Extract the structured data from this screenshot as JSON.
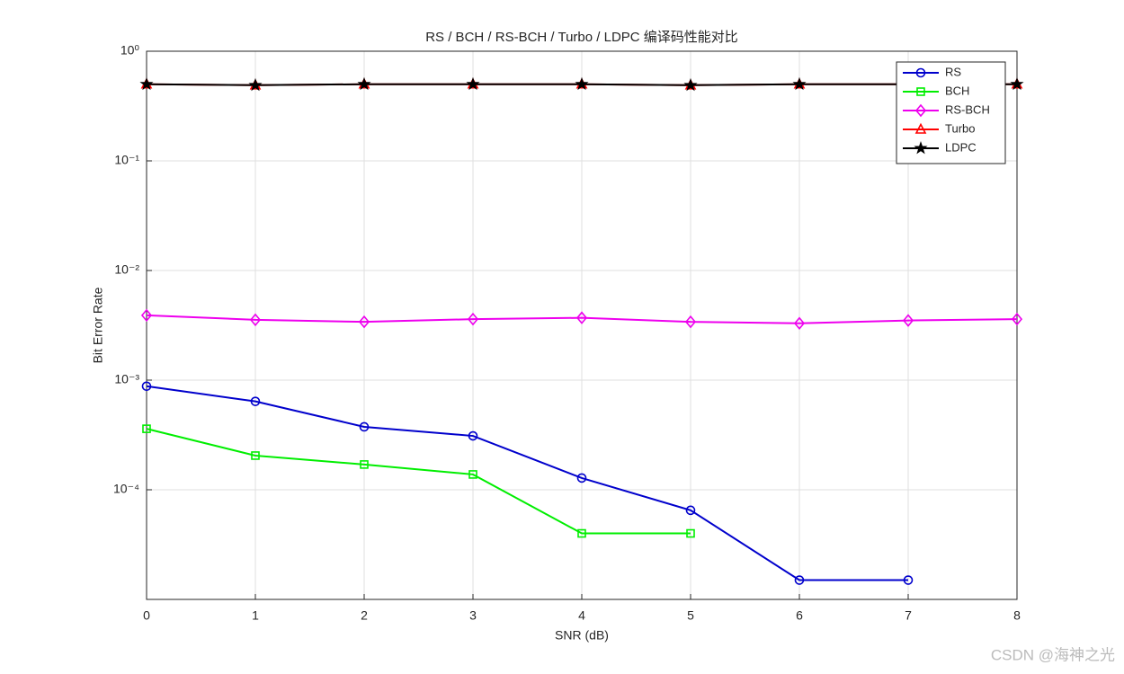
{
  "chart_data": {
    "type": "line",
    "title": "RS / BCH / RS-BCH / Turbo / LDPC 编译码性能对比",
    "x_label": "SNR (dB)",
    "y_label": "Bit Error Rate",
    "x": [
      0,
      1,
      2,
      3,
      4,
      5,
      6,
      7,
      8
    ],
    "xlim": [
      0,
      8
    ],
    "xticks": [
      0,
      1,
      2,
      3,
      4,
      5,
      6,
      7,
      8
    ],
    "ylim": [
      1e-05,
      1
    ],
    "log_y": true,
    "yticks": [
      {
        "value": 0.0001,
        "label": "10⁻⁴"
      },
      {
        "value": 0.001,
        "label": "10⁻³"
      },
      {
        "value": 0.01,
        "label": "10⁻²"
      },
      {
        "value": 0.1,
        "label": "10⁻¹"
      },
      {
        "value": 1,
        "label": "10⁰"
      }
    ],
    "grid": true,
    "legend": "upper right",
    "series": [
      {
        "name": "RS",
        "color": "#0000cc",
        "marker": "circle",
        "values": [
          0.00088,
          0.00064,
          0.000375,
          0.00031,
          0.000128,
          6.5e-05,
          1.5e-05,
          1.5e-05,
          null
        ]
      },
      {
        "name": "BCH",
        "color": "#00ee00",
        "marker": "square",
        "values": [
          0.00036,
          0.000205,
          0.00017,
          0.000138,
          4e-05,
          4e-05,
          null,
          null,
          null
        ]
      },
      {
        "name": "RS-BCH",
        "color": "#ee00ee",
        "marker": "diamond",
        "values": [
          0.0039,
          0.00355,
          0.0034,
          0.0036,
          0.0037,
          0.0034,
          0.0033,
          0.0035,
          0.0036
        ]
      },
      {
        "name": "Turbo",
        "color": "#ff0000",
        "marker": "triangle",
        "values": [
          0.5,
          0.49,
          0.5,
          0.5,
          0.5,
          0.49,
          0.5,
          0.5,
          0.5
        ]
      },
      {
        "name": "LDPC",
        "color": "#000000",
        "marker": "star",
        "values": [
          0.5,
          0.49,
          0.5,
          0.5,
          0.5,
          0.49,
          0.5,
          0.5,
          0.5
        ]
      }
    ],
    "watermark": "CSDN @海神之光"
  }
}
